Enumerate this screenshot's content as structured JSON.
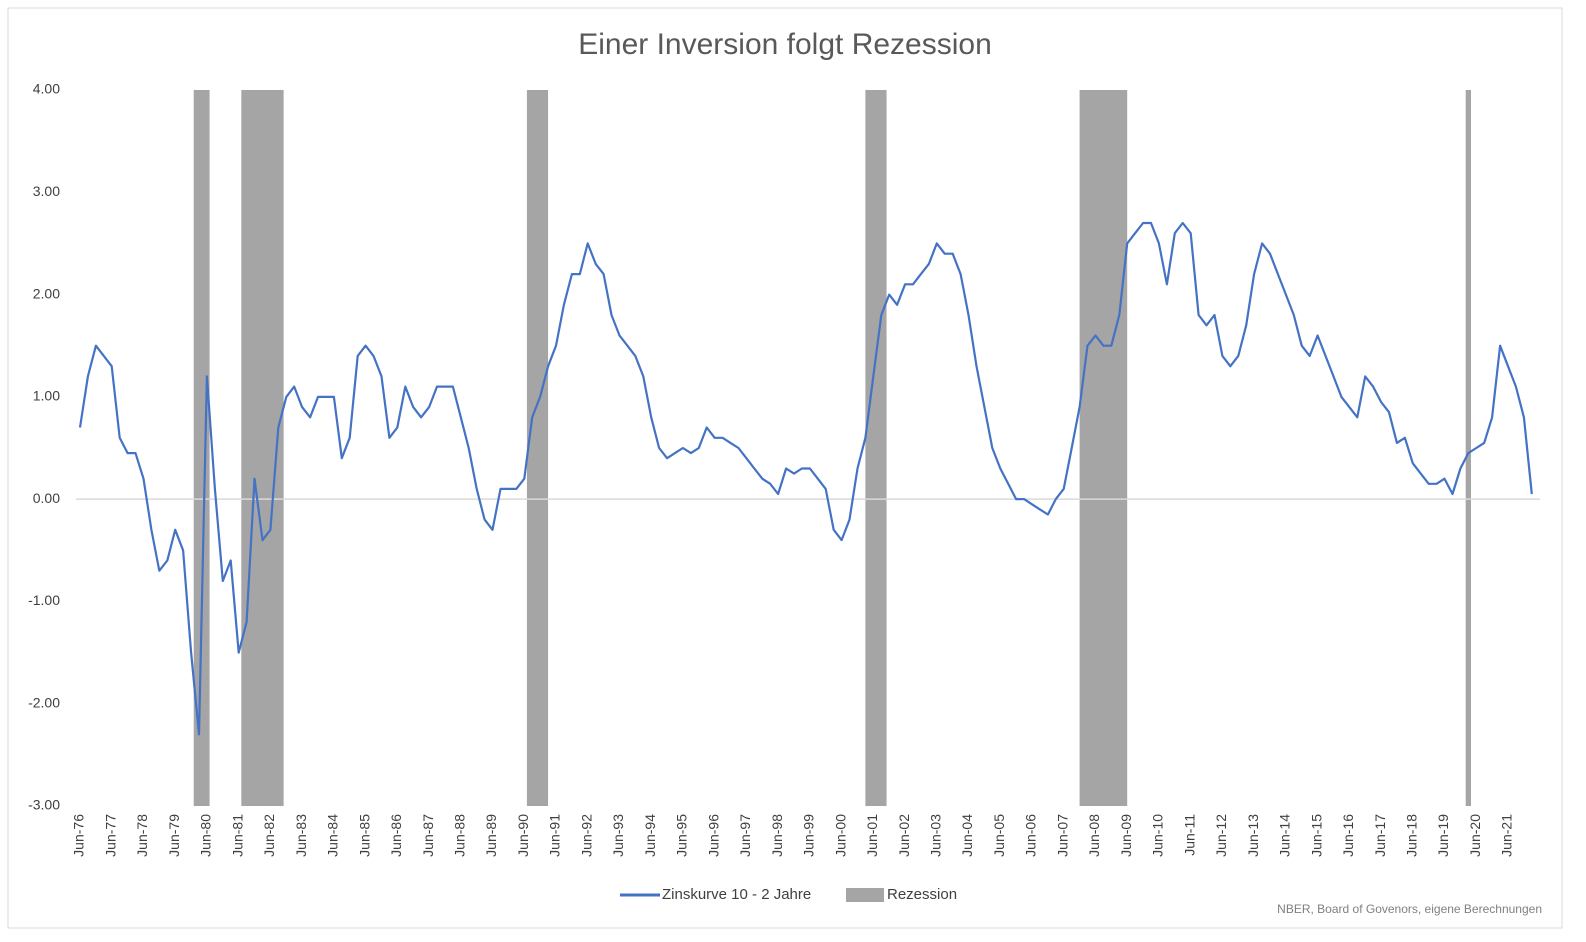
{
  "chart_data": {
    "type": "line",
    "title": "Einer Inversion folgt Rezession",
    "source": "NBER, Board of Govenors, eigene Berechnungen",
    "x": [
      "Jun-76",
      "Sep-76",
      "Dec-76",
      "Mar-77",
      "Jun-77",
      "Sep-77",
      "Dec-77",
      "Mar-78",
      "Jun-78",
      "Sep-78",
      "Dec-78",
      "Mar-79",
      "Jun-79",
      "Sep-79",
      "Dec-79",
      "Mar-80",
      "Jun-80",
      "Sep-80",
      "Dec-80",
      "Mar-81",
      "Jun-81",
      "Sep-81",
      "Dec-81",
      "Mar-82",
      "Jun-82",
      "Sep-82",
      "Dec-82",
      "Mar-83",
      "Jun-83",
      "Sep-83",
      "Dec-83",
      "Mar-84",
      "Jun-84",
      "Sep-84",
      "Dec-84",
      "Mar-85",
      "Jun-85",
      "Sep-85",
      "Dec-85",
      "Mar-86",
      "Jun-86",
      "Sep-86",
      "Dec-86",
      "Mar-87",
      "Jun-87",
      "Sep-87",
      "Dec-87",
      "Mar-88",
      "Jun-88",
      "Sep-88",
      "Dec-88",
      "Mar-89",
      "Jun-89",
      "Sep-89",
      "Dec-89",
      "Mar-90",
      "Jun-90",
      "Sep-90",
      "Dec-90",
      "Mar-91",
      "Jun-91",
      "Sep-91",
      "Dec-91",
      "Mar-92",
      "Jun-92",
      "Sep-92",
      "Dec-92",
      "Mar-93",
      "Jun-93",
      "Sep-93",
      "Dec-93",
      "Mar-94",
      "Jun-94",
      "Sep-94",
      "Dec-94",
      "Mar-95",
      "Jun-95",
      "Sep-95",
      "Dec-95",
      "Mar-96",
      "Jun-96",
      "Sep-96",
      "Dec-96",
      "Mar-97",
      "Jun-97",
      "Sep-97",
      "Dec-97",
      "Mar-98",
      "Jun-98",
      "Sep-98",
      "Dec-98",
      "Mar-99",
      "Jun-99",
      "Sep-99",
      "Dec-99",
      "Mar-00",
      "Jun-00",
      "Sep-00",
      "Dec-00",
      "Mar-01",
      "Jun-01",
      "Sep-01",
      "Dec-01",
      "Mar-02",
      "Jun-02",
      "Sep-02",
      "Dec-02",
      "Mar-03",
      "Jun-03",
      "Sep-03",
      "Dec-03",
      "Mar-04",
      "Jun-04",
      "Sep-04",
      "Dec-04",
      "Mar-05",
      "Jun-05",
      "Sep-05",
      "Dec-05",
      "Mar-06",
      "Jun-06",
      "Sep-06",
      "Dec-06",
      "Mar-07",
      "Jun-07",
      "Sep-07",
      "Dec-07",
      "Mar-08",
      "Jun-08",
      "Sep-08",
      "Dec-08",
      "Mar-09",
      "Jun-09",
      "Sep-09",
      "Dec-09",
      "Mar-10",
      "Jun-10",
      "Sep-10",
      "Dec-10",
      "Mar-11",
      "Jun-11",
      "Sep-11",
      "Dec-11",
      "Mar-12",
      "Jun-12",
      "Sep-12",
      "Dec-12",
      "Mar-13",
      "Jun-13",
      "Sep-13",
      "Dec-13",
      "Mar-14",
      "Jun-14",
      "Sep-14",
      "Dec-14",
      "Mar-15",
      "Jun-15",
      "Sep-15",
      "Dec-15",
      "Mar-16",
      "Jun-16",
      "Sep-16",
      "Dec-16",
      "Mar-17",
      "Jun-17",
      "Sep-17",
      "Dec-17",
      "Mar-18",
      "Jun-18",
      "Sep-18",
      "Dec-18",
      "Mar-19",
      "Jun-19",
      "Sep-19",
      "Dec-19",
      "Mar-20",
      "Jun-20",
      "Sep-20",
      "Dec-20",
      "Mar-21",
      "Jun-21",
      "Sep-21",
      "Dec-21",
      "Mar-22"
    ],
    "series": [
      {
        "name": "Zinskurve 10 - 2 Jahre",
        "color": "#4472c4",
        "values": [
          0.7,
          1.2,
          1.5,
          1.4,
          1.3,
          0.6,
          0.45,
          0.45,
          0.2,
          -0.3,
          -0.7,
          -0.6,
          -0.3,
          -0.5,
          -1.5,
          -2.3,
          1.2,
          0.1,
          -0.8,
          -0.6,
          -1.5,
          -1.2,
          0.2,
          -0.4,
          -0.3,
          0.7,
          1.0,
          1.1,
          0.9,
          0.8,
          1.0,
          1.0,
          1.0,
          0.4,
          0.6,
          1.4,
          1.5,
          1.4,
          1.2,
          0.6,
          0.7,
          1.1,
          0.9,
          0.8,
          0.9,
          1.1,
          1.1,
          1.1,
          0.8,
          0.5,
          0.1,
          -0.2,
          -0.3,
          0.1,
          0.1,
          0.1,
          0.2,
          0.8,
          1.0,
          1.3,
          1.5,
          1.9,
          2.2,
          2.2,
          2.5,
          2.3,
          2.2,
          1.8,
          1.6,
          1.5,
          1.4,
          1.2,
          0.8,
          0.5,
          0.4,
          0.45,
          0.5,
          0.45,
          0.5,
          0.7,
          0.6,
          0.6,
          0.55,
          0.5,
          0.4,
          0.3,
          0.2,
          0.15,
          0.05,
          0.3,
          0.25,
          0.3,
          0.3,
          0.2,
          0.1,
          -0.3,
          -0.4,
          -0.2,
          0.3,
          0.6,
          1.2,
          1.8,
          2.0,
          1.9,
          2.1,
          2.1,
          2.2,
          2.3,
          2.5,
          2.4,
          2.4,
          2.2,
          1.8,
          1.3,
          0.9,
          0.5,
          0.3,
          0.15,
          0.0,
          0.0,
          -0.05,
          -0.1,
          -0.15,
          0.0,
          0.1,
          0.5,
          0.9,
          1.5,
          1.6,
          1.5,
          1.5,
          1.8,
          2.5,
          2.6,
          2.7,
          2.7,
          2.5,
          2.1,
          2.6,
          2.7,
          2.6,
          1.8,
          1.7,
          1.8,
          1.4,
          1.3,
          1.4,
          1.7,
          2.2,
          2.5,
          2.4,
          2.2,
          2.0,
          1.8,
          1.5,
          1.4,
          1.6,
          1.4,
          1.2,
          1.0,
          0.9,
          0.8,
          1.2,
          1.1,
          0.95,
          0.85,
          0.55,
          0.6,
          0.35,
          0.25,
          0.15,
          0.15,
          0.2,
          0.05,
          0.3,
          0.45,
          0.5,
          0.55,
          0.8,
          1.5,
          1.3,
          1.1,
          0.8,
          0.05
        ]
      }
    ],
    "bands": {
      "name": "Rezession",
      "color": "#a5a5a5",
      "ranges": [
        [
          "Jan-80",
          "Jul-80"
        ],
        [
          "Jul-81",
          "Nov-82"
        ],
        [
          "Jul-90",
          "Mar-91"
        ],
        [
          "Mar-01",
          "Nov-01"
        ],
        [
          "Dec-07",
          "Jun-09"
        ],
        [
          "Feb-20",
          "Apr-20"
        ]
      ]
    },
    "ylim": [
      -3,
      4
    ],
    "yticks": [
      {
        "value": 4,
        "label": "4.00"
      },
      {
        "value": 3,
        "label": "3.00"
      },
      {
        "value": 2,
        "label": "2.00"
      },
      {
        "value": 1,
        "label": "1.00"
      },
      {
        "value": 0,
        "label": "0.00"
      },
      {
        "value": -1,
        "label": "-1.00"
      },
      {
        "value": -2,
        "label": "-2.00"
      },
      {
        "value": -3,
        "label": "-3.00"
      }
    ],
    "xticks": [
      "Jun-76",
      "Jun-77",
      "Jun-78",
      "Jun-79",
      "Jun-80",
      "Jun-81",
      "Jun-82",
      "Jun-83",
      "Jun-84",
      "Jun-85",
      "Jun-86",
      "Jun-87",
      "Jun-88",
      "Jun-89",
      "Jun-90",
      "Jun-91",
      "Jun-92",
      "Jun-93",
      "Jun-94",
      "Jun-95",
      "Jun-96",
      "Jun-97",
      "Jun-98",
      "Jun-99",
      "Jun-00",
      "Jun-01",
      "Jun-02",
      "Jun-03",
      "Jun-04",
      "Jun-05",
      "Jun-06",
      "Jun-07",
      "Jun-08",
      "Jun-09",
      "Jun-10",
      "Jun-11",
      "Jun-12",
      "Jun-13",
      "Jun-14",
      "Jun-15",
      "Jun-16",
      "Jun-17",
      "Jun-18",
      "Jun-19",
      "Jun-20",
      "Jun-21"
    ],
    "grid": false,
    "legend": "bottom"
  }
}
